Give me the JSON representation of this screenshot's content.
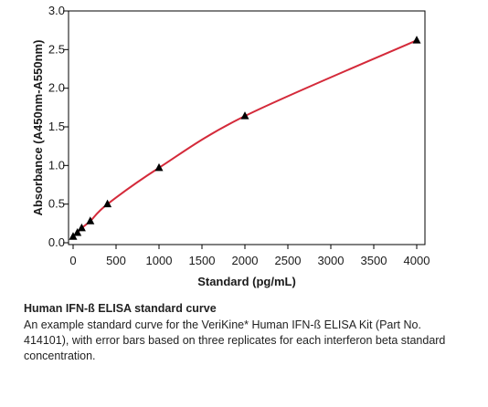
{
  "chart_data": {
    "type": "line",
    "title": "",
    "xlabel": "Standard (pg/mL)",
    "ylabel": "Absorbance (A450nm-A550nm)",
    "xlim": [
      0,
      4000
    ],
    "ylim": [
      0,
      3.0
    ],
    "xticks": [
      0,
      500,
      1000,
      1500,
      2000,
      2500,
      3000,
      3500,
      4000
    ],
    "yticks": [
      "0.0",
      "0.5",
      "1.0",
      "1.5",
      "2.0",
      "2.5",
      "3.0"
    ],
    "grid": false,
    "legend": "none",
    "series": [
      {
        "marker": "triangle",
        "points": [
          {
            "x": 0,
            "y": 0.08
          },
          {
            "x": 50,
            "y": 0.13
          },
          {
            "x": 100,
            "y": 0.19
          },
          {
            "x": 200,
            "y": 0.28
          },
          {
            "x": 400,
            "y": 0.5
          },
          {
            "x": 1000,
            "y": 0.97
          },
          {
            "x": 2000,
            "y": 1.64
          },
          {
            "x": 4000,
            "y": 2.62
          }
        ],
        "color": "#000000"
      }
    ],
    "curve_color": "#d42a3a"
  },
  "caption": {
    "title": "Human IFN-ß ELISA standard curve",
    "text": "An example standard curve for the VeriKine* Human IFN-ß ELISA Kit (Part No. 414101), with error bars based on three replicates for each interferon beta standard concentration."
  }
}
